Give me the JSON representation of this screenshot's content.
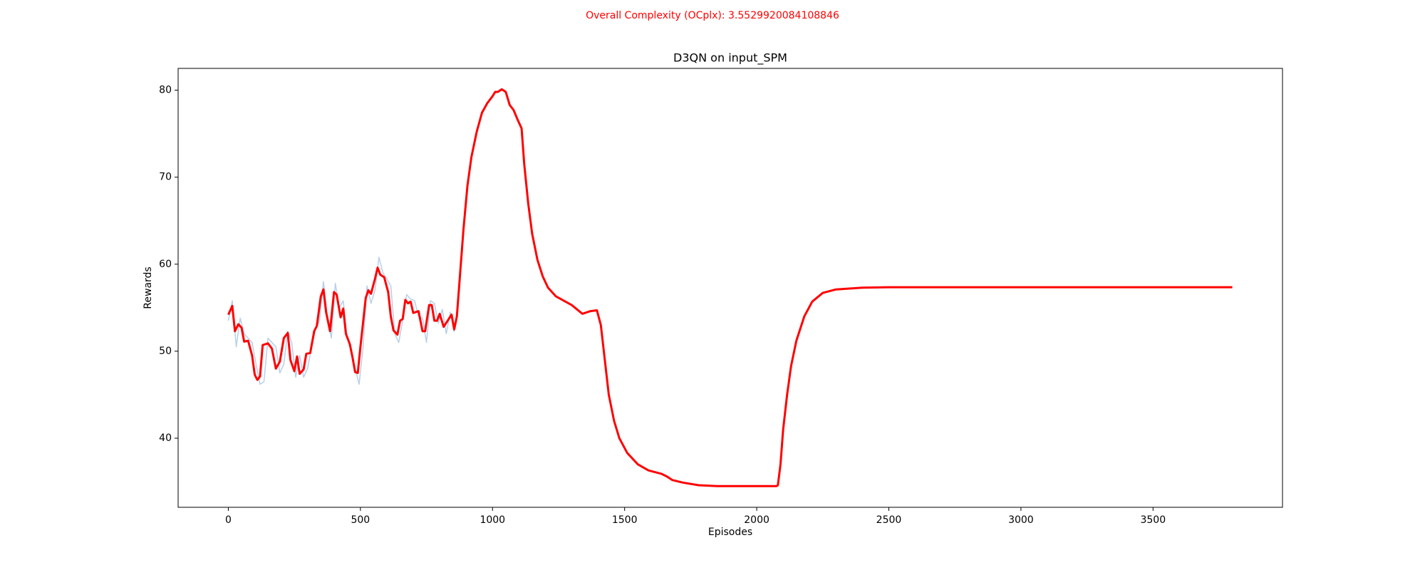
{
  "chart_data": {
    "type": "line",
    "suptitle": "Overall Complexity (OCplx): 3.5529920084108846",
    "title": "D3QN on input_SPM",
    "x_label": "Episodes",
    "y_label": "Rewards",
    "xlim": [
      -190,
      3990
    ],
    "ylim": [
      32.06,
      82.5
    ],
    "xticks": [
      0,
      500,
      1000,
      1500,
      2000,
      2500,
      3000,
      3500
    ],
    "yticks": [
      40,
      50,
      60,
      70,
      80
    ],
    "grid": false,
    "series": [
      {
        "color": "#b7d0e8",
        "x": [
          0,
          15,
          30,
          45,
          60,
          75,
          90,
          105,
          120,
          135,
          150,
          165,
          180,
          195,
          210,
          225,
          240,
          255,
          270,
          285,
          300,
          315,
          330,
          345,
          360,
          375,
          390,
          405,
          420,
          435,
          450,
          465,
          480,
          495,
          510,
          525,
          540,
          555,
          570,
          585,
          600,
          615,
          630,
          645,
          660,
          675,
          690,
          705,
          720,
          735,
          750,
          765,
          780,
          795,
          810,
          825,
          840,
          855
        ],
        "values": [
          53.5,
          55.8,
          50.5,
          53.8,
          52.0,
          51.5,
          51.0,
          48.5,
          46.2,
          46.5,
          51.5,
          51.0,
          50.5,
          47.5,
          48.5,
          52.3,
          51.0,
          47.0,
          49.5,
          47.0,
          48.0,
          50.5,
          52.5,
          53.5,
          58.0,
          54.0,
          51.5,
          57.8,
          55.0,
          55.8,
          51.5,
          50.0,
          48.0,
          46.2,
          50.5,
          57.5,
          55.5,
          57.0,
          60.8,
          59.0,
          58.3,
          57.5,
          52.0,
          51.0,
          53.5,
          56.5,
          56.0,
          55.8,
          54.0,
          53.8,
          51.0,
          55.8,
          55.5,
          53.2,
          54.8,
          52.0,
          54.5,
          52.2
        ]
      },
      {
        "color": "#ff0000",
        "x": [
          0,
          15,
          25,
          38,
          50,
          60,
          75,
          90,
          100,
          110,
          120,
          130,
          150,
          165,
          180,
          195,
          210,
          225,
          235,
          250,
          260,
          270,
          285,
          295,
          310,
          325,
          335,
          350,
          360,
          370,
          385,
          400,
          410,
          425,
          435,
          445,
          460,
          470,
          480,
          490,
          500,
          510,
          520,
          530,
          540,
          555,
          565,
          575,
          590,
          605,
          615,
          625,
          640,
          650,
          660,
          670,
          680,
          690,
          700,
          720,
          735,
          745,
          760,
          770,
          780,
          790,
          800,
          815,
          830,
          845,
          855,
          865,
          875,
          890,
          905,
          920,
          940,
          960,
          980,
          1000,
          1010,
          1020,
          1035,
          1050,
          1065,
          1080,
          1095,
          1110,
          1120,
          1135,
          1150,
          1170,
          1190,
          1210,
          1240,
          1270,
          1300,
          1320,
          1340,
          1370,
          1395,
          1410,
          1425,
          1440,
          1460,
          1480,
          1510,
          1550,
          1590,
          1640,
          1660,
          1680,
          1720,
          1780,
          1850,
          1950,
          2075,
          2080,
          2090,
          2100,
          2115,
          2130,
          2150,
          2180,
          2210,
          2250,
          2300,
          2400,
          2500,
          3000,
          3800
        ],
        "values": [
          54.2,
          55.2,
          52.3,
          53.1,
          52.7,
          51.1,
          51.2,
          49.5,
          47.3,
          46.7,
          47.1,
          50.7,
          50.9,
          50.3,
          48.0,
          48.8,
          51.5,
          52.1,
          49.0,
          47.7,
          49.4,
          47.4,
          47.9,
          49.7,
          49.8,
          52.3,
          52.9,
          56.3,
          57.1,
          54.5,
          52.3,
          56.8,
          56.5,
          53.9,
          54.9,
          52.0,
          50.8,
          49.3,
          47.6,
          47.5,
          50.5,
          53.3,
          56.1,
          57.0,
          56.6,
          58.3,
          59.6,
          58.8,
          58.5,
          56.8,
          54.0,
          52.4,
          51.9,
          53.5,
          53.7,
          55.9,
          55.5,
          55.7,
          54.4,
          54.6,
          52.3,
          52.3,
          55.3,
          55.3,
          53.5,
          53.5,
          54.3,
          52.8,
          53.5,
          54.2,
          52.5,
          54.0,
          58,
          64,
          69,
          72.3,
          75.2,
          77.4,
          78.5,
          79.3,
          79.8,
          79.8,
          80.1,
          79.8,
          78.3,
          77.7,
          76.6,
          75.6,
          71.5,
          67,
          63.5,
          60.5,
          58.6,
          57.3,
          56.3,
          55.8,
          55.3,
          54.8,
          54.3,
          54.6,
          54.7,
          53,
          49,
          45,
          42,
          40,
          38.3,
          37,
          36.3,
          35.9,
          35.6,
          35.2,
          34.9,
          34.6,
          34.5,
          34.5,
          34.5,
          34.6,
          37,
          41,
          45,
          48.3,
          51.2,
          54,
          55.7,
          56.7,
          57.1,
          57.3,
          57.35,
          57.35,
          57.35
        ]
      }
    ]
  }
}
